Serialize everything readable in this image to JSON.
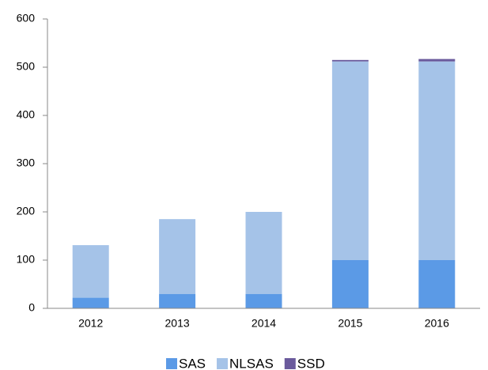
{
  "chart_data": {
    "type": "stacked_bar",
    "categories": [
      "2012",
      "2013",
      "2014",
      "2015",
      "2016"
    ],
    "series": [
      {
        "name": "SAS",
        "color": "#5b9ae6",
        "values": [
          22,
          30,
          30,
          100,
          100
        ]
      },
      {
        "name": "NLSAS",
        "color": "#a5c3e8",
        "values": [
          109,
          155,
          170,
          412,
          412
        ]
      },
      {
        "name": "SSD",
        "color": "#6a5a9c",
        "values": [
          0,
          0,
          0,
          3,
          5
        ]
      }
    ],
    "ylim": [
      0,
      600
    ],
    "yticks": [
      0,
      100,
      200,
      300,
      400,
      500,
      600
    ],
    "grid": false,
    "legend": "bottom"
  }
}
